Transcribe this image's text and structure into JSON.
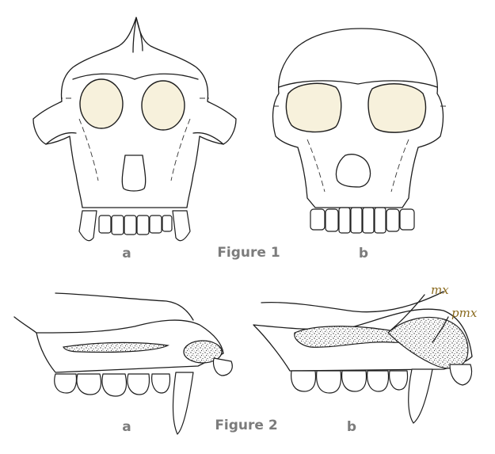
{
  "figure1": {
    "caption": "Figure 1",
    "label_a": "a",
    "label_b": "b"
  },
  "figure2": {
    "caption": "Figure 2",
    "label_a": "a",
    "label_b": "b",
    "annotation_mx": "mx",
    "annotation_pmx": "pmx"
  },
  "colors": {
    "orbit_fill": "#f7f1dc",
    "caption_gray": "#7c7c7c",
    "annotation_brown": "#8a6a1e"
  }
}
